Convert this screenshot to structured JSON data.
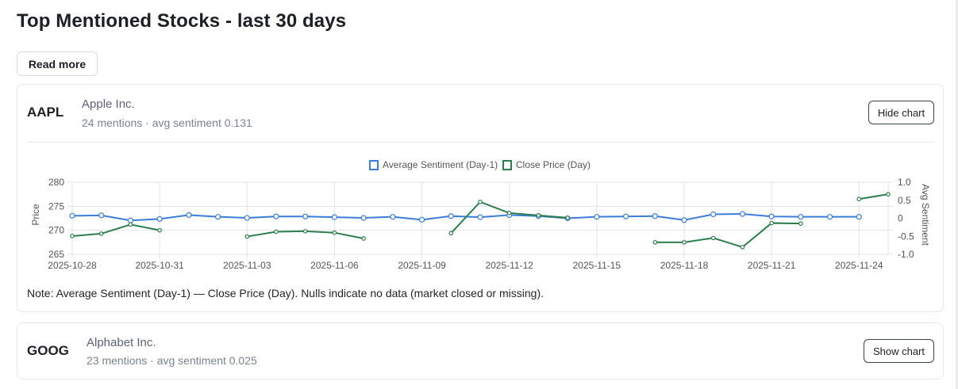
{
  "page": {
    "title": "Top Mentioned Stocks - last 30 days",
    "read_more_label": "Read more"
  },
  "stocks": [
    {
      "ticker": "AAPL",
      "company": "Apple Inc.",
      "meta": "24 mentions · avg sentiment 0.131",
      "toggle_label": "Hide chart",
      "note": "Note: Average Sentiment (Day-1) — Close Price (Day). Nulls indicate no data (market closed or missing)."
    },
    {
      "ticker": "GOOG",
      "company": "Alphabet Inc.",
      "meta": "23 mentions · avg sentiment 0.025",
      "toggle_label": "Show chart"
    }
  ],
  "chart_data": {
    "type": "line",
    "legend_position": "top",
    "grid": true,
    "x": [
      "2025-10-28",
      "2025-10-29",
      "2025-10-30",
      "2025-10-31",
      "2025-11-01",
      "2025-11-02",
      "2025-11-03",
      "2025-11-04",
      "2025-11-05",
      "2025-11-06",
      "2025-11-07",
      "2025-11-08",
      "2025-11-09",
      "2025-11-10",
      "2025-11-11",
      "2025-11-12",
      "2025-11-13",
      "2025-11-14",
      "2025-11-15",
      "2025-11-16",
      "2025-11-17",
      "2025-11-18",
      "2025-11-19",
      "2025-11-20",
      "2025-11-21",
      "2025-11-22",
      "2025-11-23",
      "2025-11-24",
      "2025-11-25"
    ],
    "x_tick_labels": [
      "2025-10-28",
      "2025-10-31",
      "2025-11-03",
      "2025-11-06",
      "2025-11-09",
      "2025-11-12",
      "2025-11-15",
      "2025-11-18",
      "2025-11-21",
      "2025-11-24"
    ],
    "y_left": {
      "label": "Price",
      "range": [
        265,
        280
      ],
      "ticks": [
        "280",
        "275",
        "270",
        "265"
      ]
    },
    "y_right": {
      "label": "Avg Sentiment",
      "range": [
        -1.0,
        1.0
      ],
      "ticks": [
        "1.0",
        "0.5",
        "0",
        "-0.5",
        "-1.0"
      ]
    },
    "series": [
      {
        "name": "Average Sentiment (Day-1)",
        "axis": "right",
        "color": "#3b7dd8",
        "values": [
          0.07,
          0.08,
          -0.06,
          -0.02,
          0.09,
          0.04,
          0.01,
          0.05,
          0.05,
          0.03,
          0.01,
          0.04,
          -0.04,
          0.06,
          0.03,
          0.09,
          0.06,
          0.0,
          0.04,
          0.05,
          0.06,
          -0.05,
          0.11,
          0.12,
          0.05,
          0.04,
          0.04,
          0.04,
          null
        ]
      },
      {
        "name": "Close Price (Day)",
        "axis": "left",
        "color": "#2e7d4f",
        "values": [
          268.8,
          269.3,
          271.2,
          270.0,
          null,
          null,
          268.7,
          269.7,
          269.8,
          269.5,
          268.3,
          null,
          null,
          269.4,
          275.9,
          273.6,
          273.1,
          272.6,
          null,
          null,
          267.5,
          267.5,
          268.4,
          266.5,
          271.5,
          271.4,
          null,
          276.5,
          277.5
        ]
      }
    ]
  }
}
